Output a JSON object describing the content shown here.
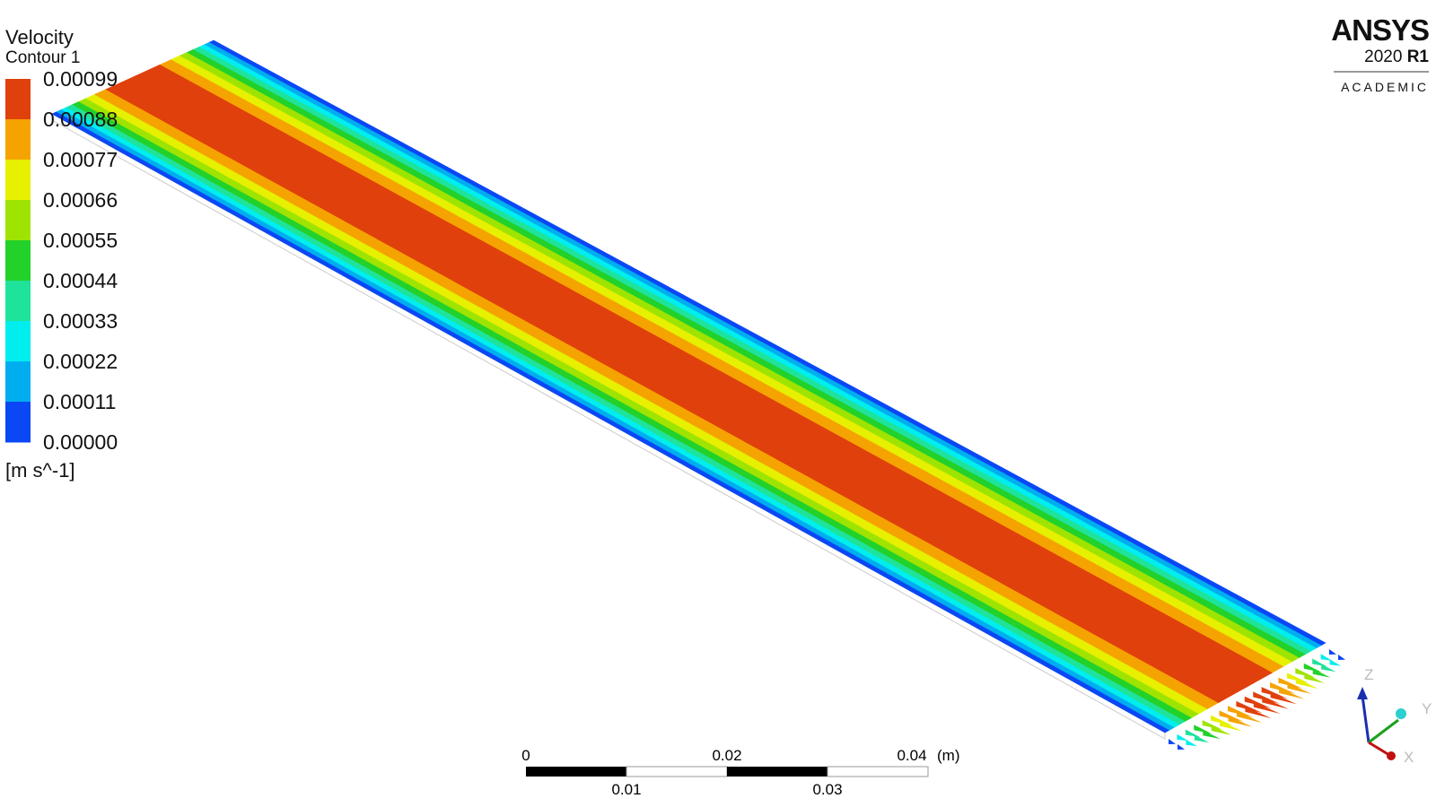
{
  "legend": {
    "title": "Velocity",
    "subtitle": "Contour 1",
    "labels": [
      "0.00099",
      "0.00088",
      "0.00077",
      "0.00066",
      "0.00055",
      "0.00044",
      "0.00033",
      "0.00022",
      "0.00011",
      "0.00000"
    ],
    "colors": [
      "#e0400c",
      "#f5a300",
      "#e6f000",
      "#9ee400",
      "#22d12a",
      "#1fe39a",
      "#00eeee",
      "#00aef0",
      "#0a47f5"
    ],
    "unit": "[m s^-1]"
  },
  "logo": {
    "brand": "ANSYS",
    "year": "2020",
    "release": "R1",
    "edition": "ACADEMIC"
  },
  "scale_bar": {
    "top_labels": [
      "0",
      "0.02",
      "0.04"
    ],
    "unit": "(m)",
    "bottom_labels": [
      "0.01",
      "0.03"
    ]
  },
  "triad": {
    "z": "Z",
    "y": "Y",
    "x": "X"
  }
}
